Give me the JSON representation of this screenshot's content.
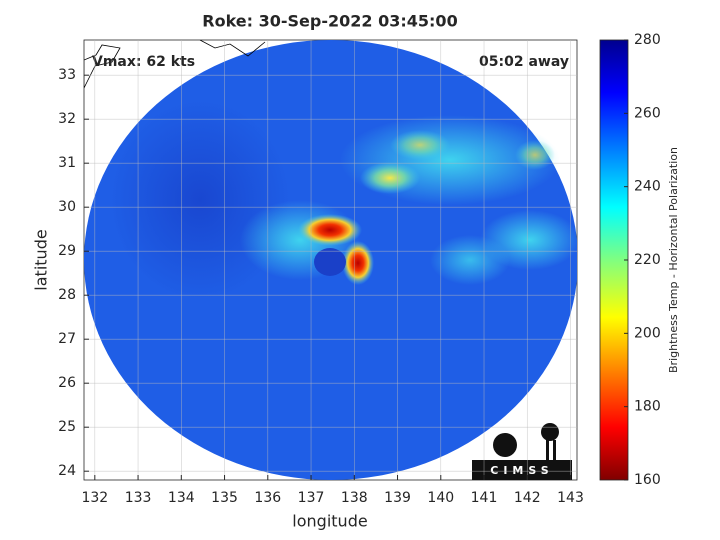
{
  "chart_data": {
    "type": "map",
    "title": "Roke: 30-Sep-2022 03:45:00",
    "xlabel": "longitude",
    "ylabel": "latitude",
    "xlim": [
      131.75,
      143.15
    ],
    "ylim": [
      23.8,
      33.8
    ],
    "xticks": [
      132,
      133,
      134,
      135,
      136,
      137,
      138,
      139,
      140,
      141,
      142,
      143
    ],
    "yticks": [
      24,
      25,
      26,
      27,
      28,
      29,
      30,
      31,
      32,
      33
    ],
    "grid": true,
    "annotations": [
      "Vmax: 62 kts",
      "05:02 away"
    ],
    "colorbar": {
      "label": "Brightness Temp - Horizontal Polarization",
      "lim": [
        160,
        280
      ],
      "ticks": [
        160,
        180,
        200,
        220,
        240,
        260,
        280
      ]
    },
    "logo": "CIMSS"
  }
}
